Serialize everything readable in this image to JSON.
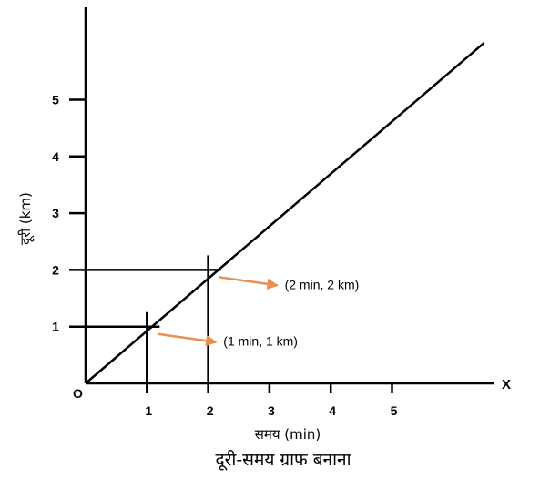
{
  "chart_data": {
    "type": "line",
    "title": "",
    "caption": "दूरी-समय ग्राफ बनाना",
    "xlabel": "समय (min)",
    "ylabel": "दूरी (km)",
    "x_axis_letter": "X",
    "origin_label": "O",
    "x_ticks": [
      "1",
      "2",
      "3",
      "4",
      "5"
    ],
    "y_ticks": [
      "1",
      "2",
      "3",
      "4",
      "5"
    ],
    "xlim": [
      0,
      6.5
    ],
    "ylim": [
      0,
      6.0
    ],
    "grid": false,
    "series": [
      {
        "x": [
          0,
          6.5
        ],
        "y": [
          0,
          6.0
        ]
      }
    ],
    "annotations": [
      {
        "x": 2,
        "y": 2,
        "text": "(2 min, 2 km)"
      },
      {
        "x": 1,
        "y": 1,
        "text": "(1 min, 1 km)"
      }
    ],
    "colors": {
      "axis": "#000000",
      "line": "#000000",
      "arrow": "#e8904f"
    }
  }
}
